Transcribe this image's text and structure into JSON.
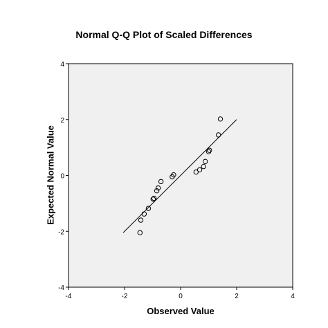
{
  "chart_data": {
    "type": "scatter",
    "title": "Normal Q-Q Plot of Scaled Differences",
    "xlabel": "Observed Value",
    "ylabel": "Expected Normal Value",
    "xlim": [
      -4,
      4
    ],
    "ylim": [
      -4,
      4
    ],
    "x_ticks": [
      "-4",
      "-2",
      "0",
      "2",
      "4"
    ],
    "y_ticks": [
      "-4",
      "-2",
      "0",
      "2",
      "4"
    ],
    "grid": false,
    "plot_background": "#f0f0f0",
    "marker": "open-circle",
    "reference_line": {
      "x": [
        -2.05,
        2.0
      ],
      "y": [
        -2.05,
        2.0
      ]
    },
    "points": [
      {
        "x": -1.45,
        "y": -2.05
      },
      {
        "x": -1.42,
        "y": -1.6
      },
      {
        "x": -1.3,
        "y": -1.38
      },
      {
        "x": -1.15,
        "y": -1.18
      },
      {
        "x": -0.98,
        "y": -0.85
      },
      {
        "x": -0.95,
        "y": -0.82
      },
      {
        "x": -0.85,
        "y": -0.55
      },
      {
        "x": -0.8,
        "y": -0.45
      },
      {
        "x": -0.7,
        "y": -0.22
      },
      {
        "x": -0.3,
        "y": -0.05
      },
      {
        "x": -0.25,
        "y": 0.02
      },
      {
        "x": 0.55,
        "y": 0.12
      },
      {
        "x": 0.68,
        "y": 0.2
      },
      {
        "x": 0.82,
        "y": 0.32
      },
      {
        "x": 0.88,
        "y": 0.5
      },
      {
        "x": 1.0,
        "y": 0.85
      },
      {
        "x": 1.03,
        "y": 0.9
      },
      {
        "x": 1.35,
        "y": 1.45
      },
      {
        "x": 1.42,
        "y": 2.02
      }
    ]
  }
}
